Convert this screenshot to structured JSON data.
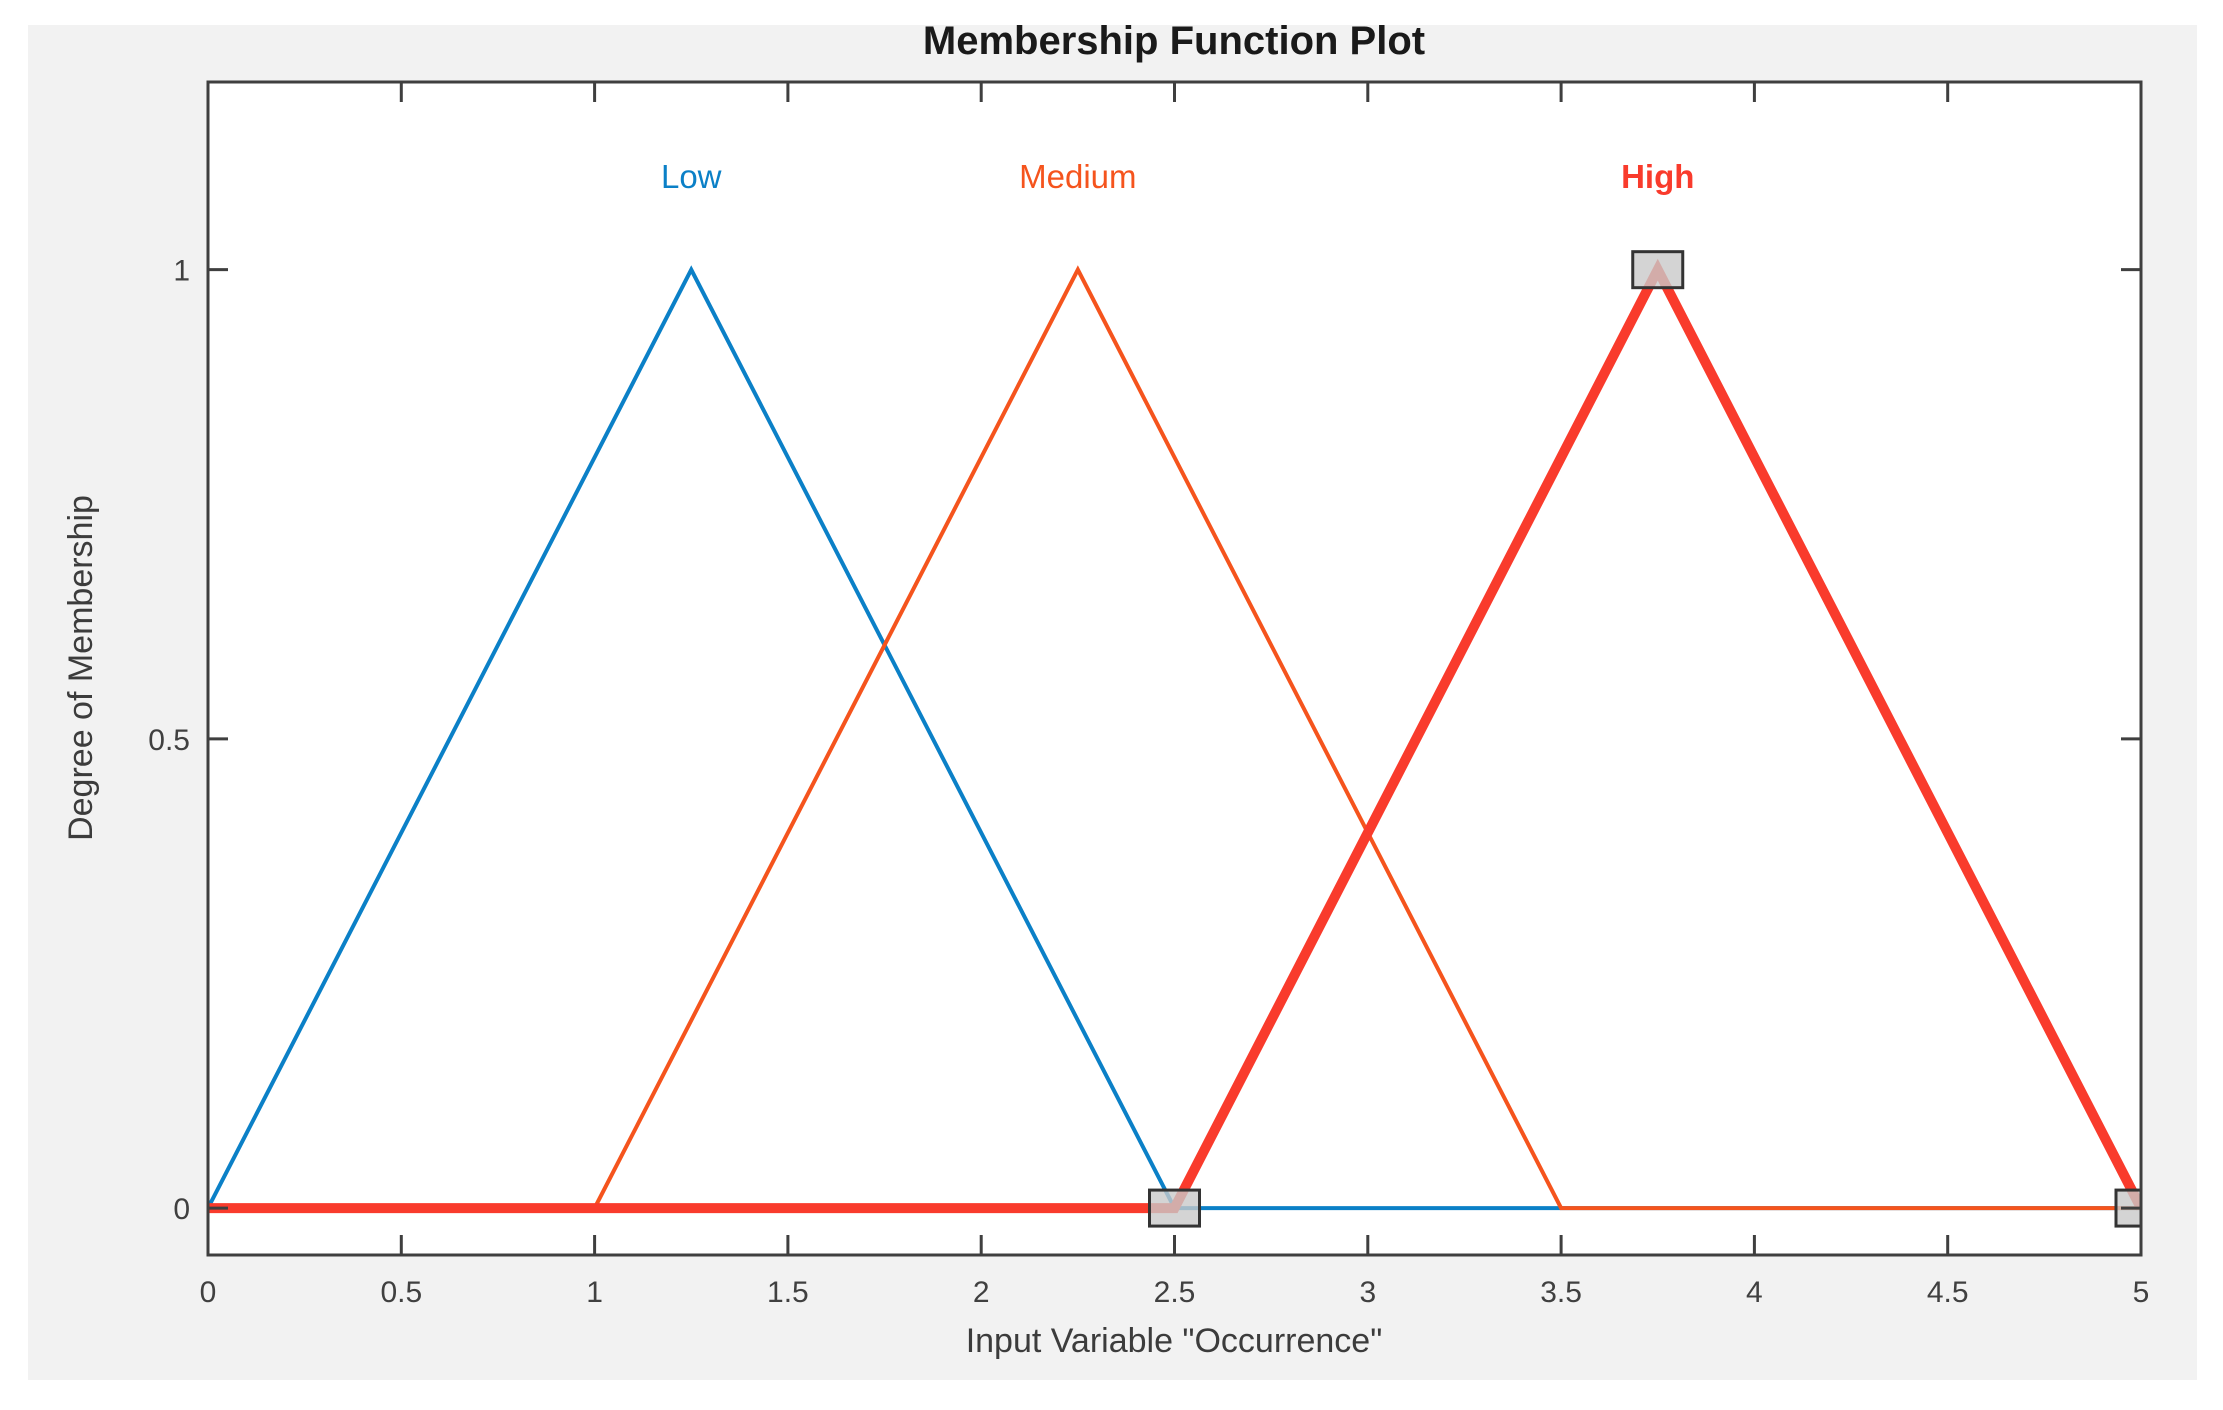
{
  "window": {
    "page_background": "#ffffff",
    "figure_background": "#f2f2f2",
    "plot_background": "#ffffff"
  },
  "chart_data": {
    "type": "line",
    "title": "Membership Function Plot",
    "xlabel": "Input Variable \"Occurrence\"",
    "ylabel": "Degree of Membership",
    "xlim": [
      0,
      5
    ],
    "ylim": [
      -0.05,
      1.2
    ],
    "xticks": [
      "0",
      "0.5",
      "1",
      "1.5",
      "2",
      "2.5",
      "3",
      "3.5",
      "4",
      "4.5",
      "5"
    ],
    "xtick_values": [
      0,
      0.5,
      1,
      1.5,
      2,
      2.5,
      3,
      3.5,
      4,
      4.5,
      5
    ],
    "yticks": [
      "0",
      "0.5",
      "1"
    ],
    "ytick_values": [
      0,
      0.5,
      1
    ],
    "grid": false,
    "box": true,
    "legend_position": "inline-labels-above-peaks",
    "selected_series": "High",
    "series": [
      {
        "name": "Low",
        "color": "#0b80c7",
        "line_width": 4,
        "selected": false,
        "bold_label": false,
        "points": [
          [
            0,
            0
          ],
          [
            1.25,
            1
          ],
          [
            2.5,
            0
          ],
          [
            5,
            0
          ]
        ],
        "label_x": 1.25,
        "label_y": 1.1
      },
      {
        "name": "Medium",
        "color": "#f5541d",
        "line_width": 4,
        "selected": false,
        "bold_label": false,
        "points": [
          [
            0,
            0
          ],
          [
            1,
            0
          ],
          [
            2.25,
            1
          ],
          [
            3.5,
            0
          ],
          [
            5,
            0
          ]
        ],
        "label_x": 2.25,
        "label_y": 1.1
      },
      {
        "name": "High",
        "color": "#f93b2c",
        "line_width": 10,
        "selected": true,
        "bold_label": true,
        "points": [
          [
            0,
            0
          ],
          [
            2.5,
            0
          ],
          [
            3.75,
            1
          ],
          [
            5,
            0
          ]
        ],
        "label_x": 3.75,
        "label_y": 1.1
      }
    ],
    "handles": {
      "fill": "#c9c9c9",
      "fill_opacity": 0.8,
      "stroke": "#333333",
      "points": [
        [
          2.5,
          0
        ],
        [
          3.75,
          1
        ],
        [
          5,
          0
        ]
      ]
    },
    "axis_style": {
      "spine_color": "#3f3f3f",
      "spine_width": 3,
      "tick_color": "#3f3f3f",
      "tick_length": 20,
      "tick_label_color": "#404040",
      "title_color": "#1a1a1a",
      "label_color": "#3c3c3c"
    }
  }
}
